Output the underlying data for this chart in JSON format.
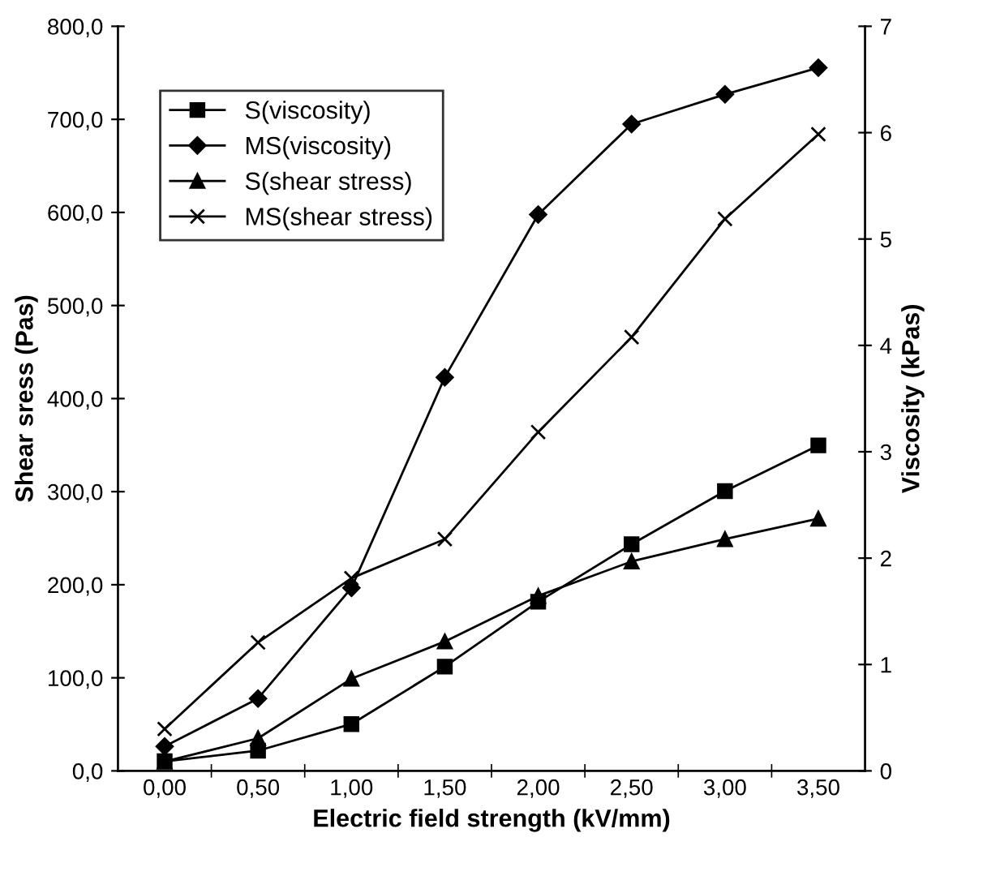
{
  "chart_data": {
    "type": "line",
    "xlabel": "Electric field strength (kV/mm)",
    "ylabel": "Shear sress (Pas)",
    "y2label": "Viscosity (kPas)",
    "categories": [
      "0,00",
      "0,50",
      "1,00",
      "1,50",
      "2,00",
      "2,50",
      "3,00",
      "3,50"
    ],
    "series": [
      {
        "name": "S(viscosity)",
        "color": "#000000",
        "marker": "square",
        "axis": "y2",
        "values": [
          0.09,
          0.19,
          0.44,
          0.98,
          1.59,
          2.13,
          2.63,
          3.06
        ]
      },
      {
        "name": "MS(viscosity)",
        "color": "#000000",
        "marker": "diamond",
        "axis": "y2",
        "values": [
          0.23,
          0.68,
          1.72,
          3.7,
          5.23,
          6.08,
          6.36,
          6.61
        ]
      },
      {
        "name": "S(shear stress)",
        "color": "#000000",
        "marker": "triangle",
        "values": [
          10,
          35,
          99,
          139,
          188,
          225,
          249,
          271
        ]
      },
      {
        "name": "MS(shear stress)",
        "color": "#000000",
        "marker": "cross",
        "values": [
          45,
          138,
          207,
          249,
          364,
          466,
          593,
          684
        ]
      }
    ],
    "ylim": [
      0,
      800
    ],
    "yticks": [
      {
        "value": 0,
        "label": "0,0"
      },
      {
        "value": 100,
        "label": "100,0"
      },
      {
        "value": 200,
        "label": "200,0"
      },
      {
        "value": 300,
        "label": "300,0"
      },
      {
        "value": 400,
        "label": "400,0"
      },
      {
        "value": 500,
        "label": "500,0"
      },
      {
        "value": 600,
        "label": "600,0"
      },
      {
        "value": 700,
        "label": "700,0"
      },
      {
        "value": 800,
        "label": "800,0"
      }
    ],
    "y2lim": [
      0,
      7
    ],
    "y2ticks": [
      0,
      1,
      2,
      3,
      4,
      5,
      6,
      7
    ],
    "legend": "top left",
    "grid": false,
    "line_style": "solid"
  }
}
